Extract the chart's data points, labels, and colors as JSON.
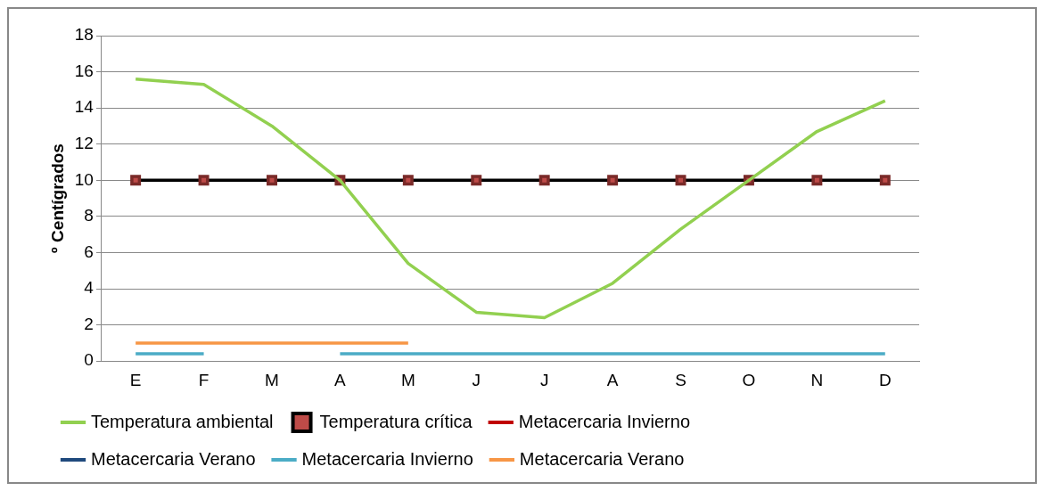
{
  "chart_data": {
    "type": "line",
    "ylabel": "º Centígrados",
    "categories": [
      "E",
      "F",
      "M",
      "A",
      "M",
      "J",
      "J",
      "A",
      "S",
      "O",
      "N",
      "D"
    ],
    "ylim": [
      0,
      18
    ],
    "yticks": [
      0,
      2,
      4,
      6,
      8,
      10,
      12,
      14,
      16,
      18
    ],
    "grid": "y",
    "legend": "bottom",
    "marker": "none",
    "line_style": "solid",
    "series": [
      {
        "name": "Temperatura ambiental",
        "color": "#92d050",
        "values": [
          15.6,
          15.3,
          13.0,
          10.0,
          5.4,
          2.7,
          2.4,
          4.3,
          7.3,
          10.0,
          12.7,
          14.4
        ]
      },
      {
        "name": "Temperatura crítica",
        "color": "#000000",
        "marker": "square",
        "values": [
          10,
          10,
          10,
          10,
          10,
          10,
          10,
          10,
          10,
          10,
          10,
          10
        ]
      },
      {
        "name": "Metacercaria Invierno",
        "color": "#c00000",
        "values": [
          null,
          null,
          null,
          null,
          null,
          null,
          null,
          null,
          null,
          null,
          null,
          null
        ]
      },
      {
        "name": "Metacercaria Verano",
        "color": "#1f497d",
        "values": [
          null,
          null,
          null,
          null,
          null,
          null,
          null,
          null,
          null,
          null,
          null,
          null
        ]
      },
      {
        "name": "Metacercaria Invierno",
        "color": "#4bacc6",
        "values": [
          0.4,
          0.4,
          null,
          0.4,
          0.4,
          0.4,
          0.4,
          0.4,
          0.4,
          0.4,
          0.4,
          0.4
        ]
      },
      {
        "name": "Metacercaria Verano",
        "color": "#f79646",
        "values": [
          1,
          1,
          1,
          1,
          1,
          null,
          null,
          null,
          null,
          null,
          null,
          null
        ]
      }
    ]
  }
}
